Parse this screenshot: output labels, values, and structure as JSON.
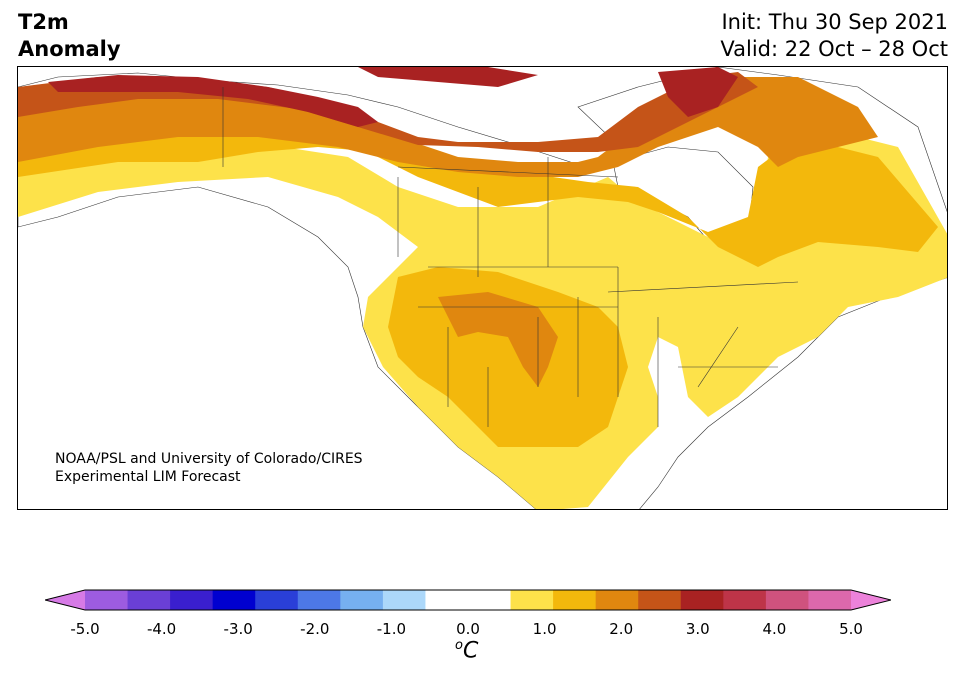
{
  "header": {
    "variable": "T2m",
    "variable_sub": "Anomaly",
    "init": "Init: Thu 30 Sep 2021",
    "valid": "Valid: 22 Oct – 28 Oct"
  },
  "credit": {
    "line1": "NOAA/PSL and University of Colorado/CIRES",
    "line2": "Experimental LIM Forecast"
  },
  "colorbar": {
    "ticks": [
      "-5.0",
      "-4.0",
      "-3.0",
      "-2.0",
      "-1.0",
      "0.0",
      "1.0",
      "2.0",
      "3.0",
      "4.0",
      "5.0"
    ],
    "unit_o": "o",
    "unit_c": "C",
    "colors": [
      "#9d5ce0",
      "#6a3fd6",
      "#3a1fce",
      "#0000d0",
      "#2a3fd8",
      "#4d78e6",
      "#76b0f0",
      "#acd8fa",
      "#ffffff",
      "#ffffff",
      "#fde24a",
      "#f3b80c",
      "#e0870f",
      "#c55418",
      "#a92222",
      "#be3448",
      "#cf527e",
      "#dd68ac"
    ],
    "under_color": "#d67ae6",
    "over_color": "#ec82da"
  },
  "map": {
    "anomaly_colors": {
      "0.5-1.0": "#fde24a",
      "1.0-1.5": "#f3b80c",
      "1.5-2.0": "#e0870f",
      "2.0-2.5": "#c55418",
      "2.5-3.0": "#a92222"
    }
  }
}
